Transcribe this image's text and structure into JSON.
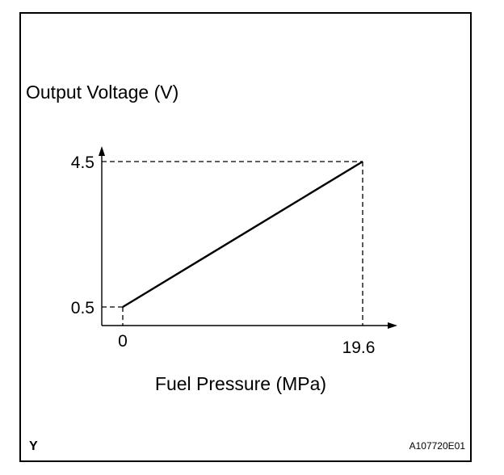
{
  "chart_data": {
    "type": "line",
    "ylabel": "Output Voltage (V)",
    "xlabel": "Fuel Pressure (MPa)",
    "x_ticks": [
      "0",
      "19.6"
    ],
    "y_ticks": [
      "0.5",
      "4.5"
    ],
    "series": [
      {
        "x": [
          0,
          19.6
        ],
        "y": [
          0.5,
          4.5
        ]
      }
    ],
    "grid": false,
    "reference_lines": "dashed"
  },
  "figure": {
    "corner_left": "Y",
    "corner_right": "A107720E01"
  }
}
